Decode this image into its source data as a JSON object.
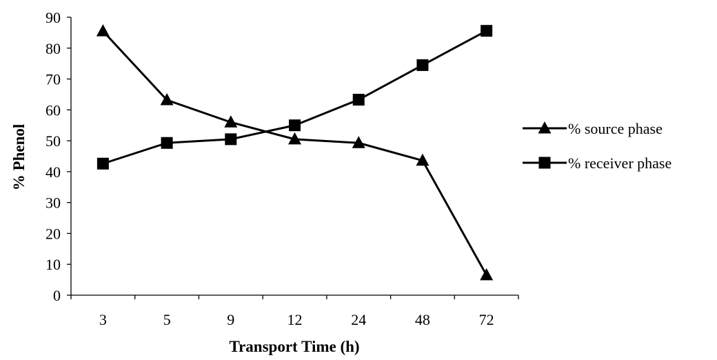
{
  "chart_data": {
    "type": "line",
    "title": "",
    "xlabel": "Transport Time (h)",
    "ylabel": "% Phenol",
    "categories": [
      "3",
      "5",
      "9",
      "12",
      "24",
      "48",
      "72"
    ],
    "ylim": [
      0,
      90
    ],
    "yticks": [
      0,
      10,
      20,
      30,
      40,
      50,
      60,
      70,
      80,
      90
    ],
    "grid": false,
    "legend_position": "right",
    "series": [
      {
        "name": "% source phase",
        "marker": "triangle",
        "color": "#000000",
        "values": [
          85.5,
          63.2,
          56.0,
          50.5,
          49.3,
          43.6,
          6.5
        ]
      },
      {
        "name": "% receiver phase",
        "marker": "square",
        "color": "#000000",
        "values": [
          42.6,
          49.3,
          50.5,
          55.0,
          63.3,
          74.5,
          85.6
        ]
      }
    ]
  }
}
